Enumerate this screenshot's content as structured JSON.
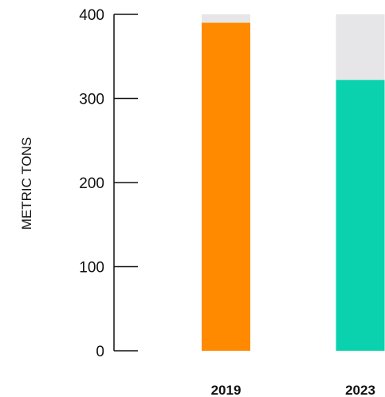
{
  "chart_data": {
    "type": "bar",
    "categories": [
      "2019",
      "2023"
    ],
    "values": [
      390,
      322
    ],
    "ylim": [
      0,
      400
    ],
    "yticks": [
      0,
      100,
      200,
      300,
      400
    ],
    "ylabel": "METRIC TONS",
    "xlabel": "",
    "title": "",
    "grid": false,
    "legend": "none",
    "colors": {
      "bars": [
        "#FF8A00",
        "#0AD2AE"
      ],
      "remainder": "#E6E6E8",
      "axis": "#111111"
    }
  }
}
